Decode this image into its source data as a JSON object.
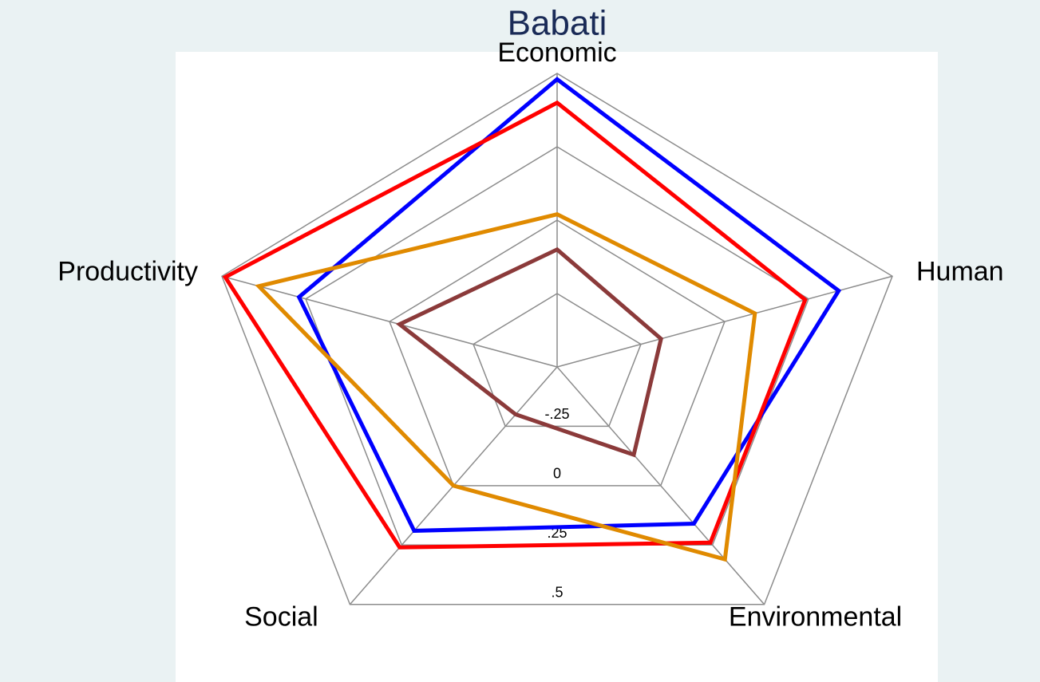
{
  "chart_data": {
    "type": "radar",
    "title": "Babati",
    "categories": [
      "Economic",
      "Human",
      "Environmental",
      "Social",
      "Productivity"
    ],
    "rlim": [
      -0.5,
      0.5
    ],
    "rticks": [
      {
        "value": -0.25,
        "label": "-.25"
      },
      0,
      {
        "value": 0.25,
        "label": ".25"
      },
      {
        "value": 0.5,
        "label": ".5"
      }
    ],
    "grid": true,
    "series": [
      {
        "color": "#0000ff",
        "values": [
          0.48,
          0.34,
          0.16,
          0.19,
          0.27
        ]
      },
      {
        "color": "#ff0000",
        "values": [
          0.4,
          0.24,
          0.24,
          0.26,
          0.49
        ]
      },
      {
        "color": "#e08a00",
        "values": [
          0.02,
          0.09,
          0.31,
          0.0,
          0.39
        ]
      },
      {
        "color": "#8b3a3a",
        "values": [
          -0.1,
          -0.19,
          -0.13,
          -0.3,
          -0.03
        ]
      }
    ]
  }
}
